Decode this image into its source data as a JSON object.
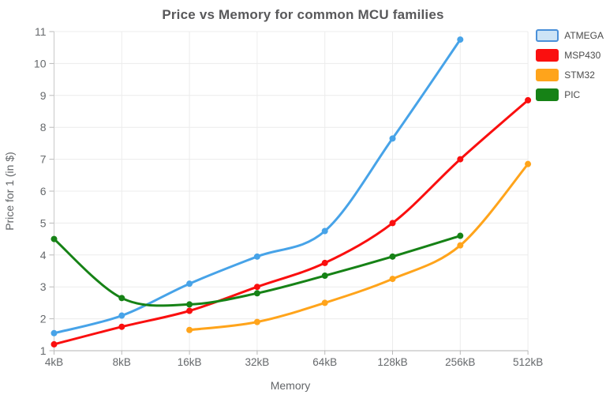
{
  "chart_data": {
    "type": "line",
    "title": "Price vs Memory for common MCU families",
    "xlabel": "Memory",
    "ylabel": "Price for 1 (in $)",
    "categories": [
      "4kB",
      "8kB",
      "16kB",
      "32kB",
      "64kB",
      "128kB",
      "256kB",
      "512kB"
    ],
    "ylim": [
      1,
      11
    ],
    "ytick_step": 1,
    "grid": true,
    "legend_position": "top-right",
    "line_width": 3,
    "marker": "circle",
    "series": [
      {
        "name": "ATMEGA",
        "color": "#47a3e8",
        "legend_fill": "#cde4f6",
        "legend_border": "#4a90d9",
        "values": [
          1.55,
          2.1,
          3.1,
          3.95,
          4.75,
          7.65,
          10.75,
          null
        ]
      },
      {
        "name": "MSP430",
        "color": "#fa0f0f",
        "legend_fill": "#fa0f0f",
        "legend_border": "#fa0f0f",
        "values": [
          1.2,
          1.75,
          2.25,
          3.0,
          3.75,
          5.0,
          7.0,
          8.85
        ]
      },
      {
        "name": "STM32",
        "color": "#ffa41b",
        "legend_fill": "#ffa41b",
        "legend_border": "#ffa41b",
        "values": [
          null,
          null,
          1.65,
          1.9,
          2.5,
          3.25,
          4.3,
          6.85
        ]
      },
      {
        "name": "PIC",
        "color": "#168216",
        "legend_fill": "#168216",
        "legend_border": "#168216",
        "values": [
          4.5,
          2.65,
          2.45,
          2.8,
          3.35,
          3.95,
          4.6,
          null
        ]
      }
    ],
    "style_colors": {
      "gridline": "#ececec",
      "axis_line": "#c9c9c9",
      "bottom_axis": "#b3b3b3",
      "tick": "#b9b9b9"
    }
  }
}
